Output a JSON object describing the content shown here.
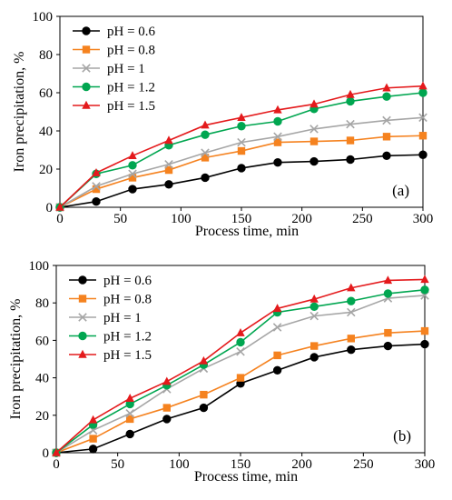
{
  "chart_data": [
    {
      "type": "line",
      "panel_label": "(a)",
      "xlabel": "Process time, min",
      "ylabel": "Iron precipitation, %",
      "xlim": [
        0,
        300
      ],
      "ylim": [
        0,
        100
      ],
      "xticks": [
        0,
        50,
        100,
        150,
        200,
        250,
        300
      ],
      "yticks": [
        0,
        20,
        40,
        60,
        80,
        100
      ],
      "x": [
        0,
        30,
        60,
        90,
        120,
        150,
        180,
        210,
        240,
        270,
        300
      ],
      "legend_position": "top-left",
      "series": [
        {
          "name": "pH = 0.6",
          "color": "#000000",
          "marker": "circle",
          "values": [
            0,
            3,
            9.5,
            12,
            15.5,
            20.5,
            23.5,
            24,
            25,
            27,
            27.5
          ]
        },
        {
          "name": "pH = 0.8",
          "color": "#F5821F",
          "marker": "square",
          "values": [
            0,
            9.5,
            15.5,
            19.5,
            26,
            29.5,
            34,
            34.5,
            35,
            37,
            37.5
          ]
        },
        {
          "name": "pH = 1",
          "color": "#A6A6A6",
          "marker": "x",
          "values": [
            0,
            11,
            17.5,
            22.5,
            28.5,
            34,
            37,
            41,
            43.5,
            45.5,
            47
          ]
        },
        {
          "name": "pH = 1.2",
          "color": "#00A650",
          "marker": "circle",
          "values": [
            0,
            17.5,
            22,
            32.5,
            38,
            42.5,
            45,
            51.5,
            55.5,
            58,
            60
          ]
        },
        {
          "name": "pH = 1.5",
          "color": "#E41A1C",
          "marker": "triangle",
          "values": [
            0,
            18,
            27,
            35,
            43,
            47,
            51,
            54,
            59,
            62.5,
            63.5
          ]
        }
      ]
    },
    {
      "type": "line",
      "panel_label": "(b)",
      "xlabel": "Process time, min",
      "ylabel": "Iron precipitation, %",
      "xlim": [
        0,
        300
      ],
      "ylim": [
        0,
        100
      ],
      "xticks": [
        0,
        50,
        100,
        150,
        200,
        250,
        300
      ],
      "yticks": [
        0,
        20,
        40,
        60,
        80,
        100
      ],
      "x": [
        0,
        30,
        60,
        90,
        120,
        150,
        180,
        210,
        240,
        270,
        300
      ],
      "legend_position": "top-left",
      "series": [
        {
          "name": "pH = 0.6",
          "color": "#000000",
          "marker": "circle",
          "values": [
            0,
            2,
            10,
            18,
            24,
            37,
            44,
            51,
            55,
            57,
            58
          ]
        },
        {
          "name": "pH = 0.8",
          "color": "#F5821F",
          "marker": "square",
          "values": [
            0,
            7.5,
            18,
            24,
            31,
            40,
            52,
            57,
            61,
            64,
            65
          ]
        },
        {
          "name": "pH = 1",
          "color": "#A6A6A6",
          "marker": "x",
          "values": [
            0,
            12,
            21,
            34,
            45,
            54,
            67,
            73,
            75,
            82.5,
            84
          ]
        },
        {
          "name": "pH = 1.2",
          "color": "#00A650",
          "marker": "circle",
          "values": [
            0,
            15,
            26,
            36,
            47,
            59,
            75,
            78,
            81,
            85,
            87
          ]
        },
        {
          "name": "pH = 1.5",
          "color": "#E41A1C",
          "marker": "triangle",
          "values": [
            0,
            17.5,
            29,
            38,
            49,
            64,
            77,
            82,
            88,
            92,
            92.5
          ]
        }
      ]
    }
  ]
}
